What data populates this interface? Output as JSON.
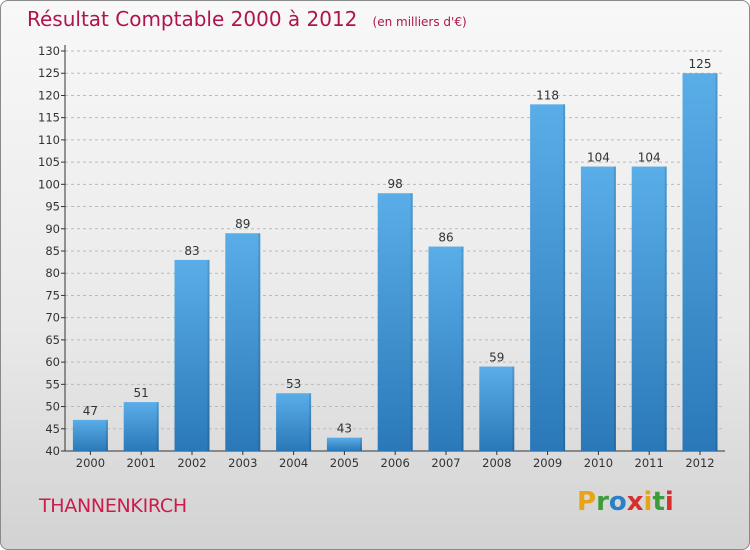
{
  "title": "Résultat Comptable 2000 à 2012",
  "subtitle": "(en milliers d'€)",
  "commune": "THANNENKIRCH",
  "logo": {
    "text": "Proxiti",
    "letters": [
      "P",
      "r",
      "o",
      "x",
      "i",
      "t",
      "i"
    ],
    "colors": [
      "#e8a317",
      "#3b9c3b",
      "#2b7fc4",
      "#d62f2f",
      "#e8a317",
      "#3b9c3b",
      "#d62f2f"
    ]
  },
  "colors": {
    "bar_top": "#5aaee8",
    "bar_bottom": "#2a78b8",
    "grid": "#bbbbbb",
    "axis": "#333333"
  },
  "chart_data": {
    "type": "bar",
    "categories": [
      "2000",
      "2001",
      "2002",
      "2003",
      "2004",
      "2005",
      "2006",
      "2007",
      "2008",
      "2009",
      "2010",
      "2011",
      "2012"
    ],
    "values": [
      47,
      51,
      83,
      89,
      53,
      43,
      98,
      86,
      59,
      118,
      104,
      104,
      125
    ],
    "ylim": [
      40,
      130
    ],
    "yticks": [
      40,
      45,
      50,
      55,
      60,
      65,
      70,
      75,
      80,
      85,
      90,
      95,
      100,
      105,
      110,
      115,
      120,
      125,
      130
    ],
    "grid": true,
    "title": "Résultat Comptable 2000 à 2012",
    "xlabel": "",
    "ylabel": ""
  }
}
